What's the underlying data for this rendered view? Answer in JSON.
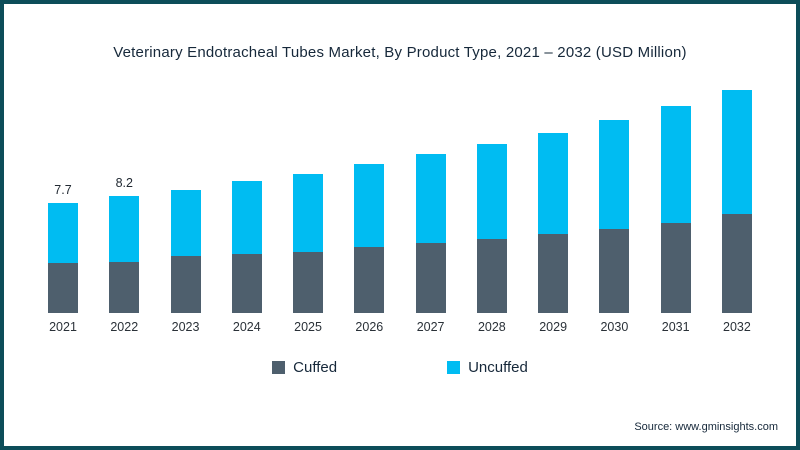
{
  "title": "Veterinary Endotracheal Tubes Market, By Product Type, 2021 – 2032 (USD Million)",
  "source": "Source: www.gminsights.com",
  "colors": {
    "frame": "#0d4d59",
    "cuffed": "#4e5f6d",
    "uncuffed": "#00bcf2"
  },
  "legend": {
    "cuffed_label": "Cuffed",
    "uncuffed_label": "Uncuffed"
  },
  "chart_data": {
    "type": "bar",
    "stacked": true,
    "title": "Veterinary Endotracheal Tubes Market, By Product Type, 2021 – 2032 (USD Million)",
    "xlabel": "",
    "ylabel": "USD Million",
    "ylim": [
      0,
      16
    ],
    "grid": false,
    "legend_position": "bottom",
    "categories": [
      "2021",
      "2022",
      "2023",
      "2024",
      "2025",
      "2026",
      "2027",
      "2028",
      "2029",
      "2030",
      "2031",
      "2032"
    ],
    "series": [
      {
        "name": "Cuffed",
        "color": "#4e5f6d",
        "values": [
          3.5,
          3.6,
          4.0,
          4.1,
          4.3,
          4.6,
          4.9,
          5.2,
          5.5,
          5.9,
          6.3,
          6.9
        ]
      },
      {
        "name": "Uncuffed",
        "color": "#00bcf2",
        "values": [
          4.2,
          4.6,
          4.6,
          5.1,
          5.4,
          5.8,
          6.2,
          6.6,
          7.1,
          7.6,
          8.2,
          8.7
        ]
      }
    ],
    "totals": [
      7.7,
      8.2,
      8.6,
      9.2,
      9.7,
      10.4,
      11.1,
      11.8,
      12.6,
      13.5,
      14.5,
      15.6
    ],
    "value_labels": {
      "2021": "7.7",
      "2022": "8.2"
    }
  }
}
